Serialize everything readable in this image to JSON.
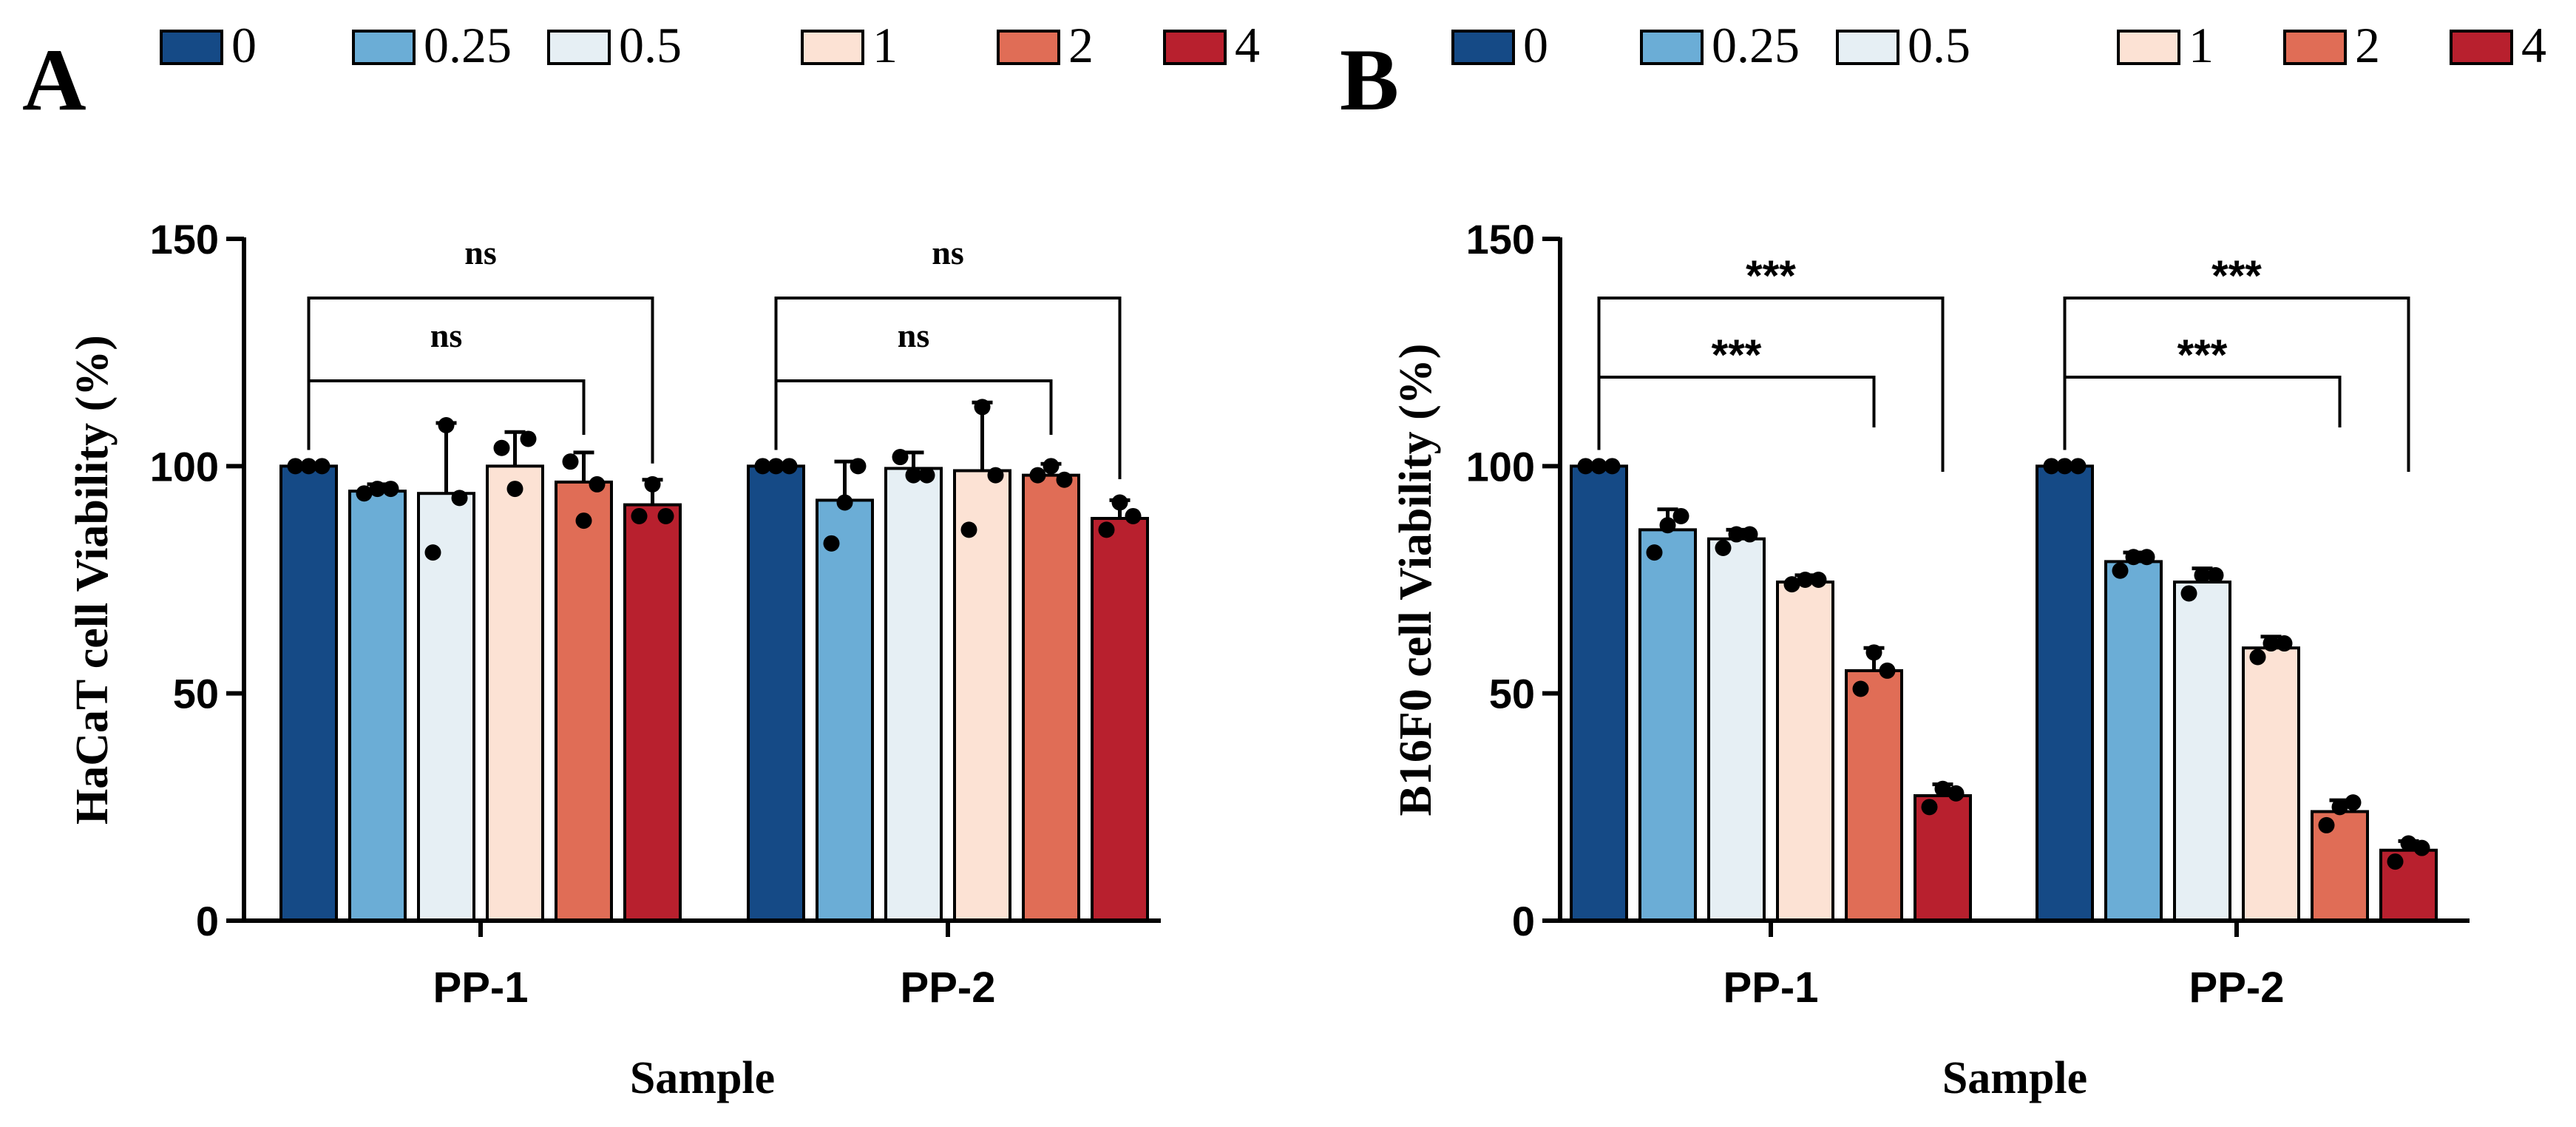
{
  "legend": {
    "entries": [
      {
        "label": "0",
        "color": "#154A86"
      },
      {
        "label": "0.25",
        "color": "#6BADD6"
      },
      {
        "label": "0.5",
        "color": "#E6EFF4"
      },
      {
        "label": "1",
        "color": "#FCE2D4"
      },
      {
        "label": "2",
        "color": "#E06D56"
      },
      {
        "label": "4",
        "color": "#B8202E"
      }
    ]
  },
  "chart_data": [
    {
      "panel": "A",
      "type": "bar",
      "ylabel": "HaCaT cell Viability (%)",
      "xlabel": "Sample",
      "ylim": [
        0,
        150
      ],
      "yticks": [
        0,
        50,
        100,
        150
      ],
      "groups": [
        "PP-1",
        "PP-2"
      ],
      "series": [
        {
          "name": "0",
          "values": [
            100,
            100
          ],
          "errors": [
            0,
            0
          ],
          "points": [
            [
              100,
              100,
              100
            ],
            [
              100,
              100,
              100
            ]
          ]
        },
        {
          "name": "0.25",
          "values": [
            94.5,
            92.5
          ],
          "errors": [
            1.5,
            8.5
          ],
          "points": [
            [
              94,
              95,
              95
            ],
            [
              83,
              92,
              100
            ]
          ]
        },
        {
          "name": "0.5",
          "values": [
            94,
            99.5
          ],
          "errors": [
            15.5,
            3.5
          ],
          "points": [
            [
              81,
              109,
              93
            ],
            [
              102,
              98,
              98
            ]
          ]
        },
        {
          "name": "1",
          "values": [
            100,
            99
          ],
          "errors": [
            7.5,
            15
          ],
          "points": [
            [
              104,
              95,
              106
            ],
            [
              86,
              113,
              98
            ]
          ]
        },
        {
          "name": "2",
          "values": [
            96.5,
            98
          ],
          "errors": [
            6.5,
            2.5
          ],
          "points": [
            [
              101,
              88,
              96
            ],
            [
              98,
              100,
              97
            ]
          ]
        },
        {
          "name": "4",
          "values": [
            91.5,
            88.5
          ],
          "errors": [
            5.5,
            4
          ],
          "points": [
            [
              89,
              96,
              89
            ],
            [
              86,
              92,
              89
            ]
          ]
        }
      ],
      "significance": [
        {
          "group": "PP-1",
          "label": "ns",
          "from": "0",
          "to": "4"
        },
        {
          "group": "PP-1",
          "label": "ns",
          "from": "0",
          "to": "2"
        },
        {
          "group": "PP-2",
          "label": "ns",
          "from": "0",
          "to": "4"
        },
        {
          "group": "PP-2",
          "label": "ns",
          "from": "0",
          "to": "2"
        }
      ]
    },
    {
      "panel": "B",
      "type": "bar",
      "ylabel": "B16F0 cell Viability (%)",
      "xlabel": "Sample",
      "ylim": [
        0,
        150
      ],
      "yticks": [
        0,
        50,
        100,
        150
      ],
      "groups": [
        "PP-1",
        "PP-2"
      ],
      "series": [
        {
          "name": "0",
          "values": [
            100,
            100
          ],
          "errors": [
            0,
            0
          ],
          "points": [
            [
              100,
              100,
              100
            ],
            [
              100,
              100,
              100
            ]
          ]
        },
        {
          "name": "0.25",
          "values": [
            86,
            79
          ],
          "errors": [
            4.5,
            2
          ],
          "points": [
            [
              81,
              87,
              89
            ],
            [
              77,
              80,
              80
            ]
          ]
        },
        {
          "name": "0.5",
          "values": [
            84,
            74.5
          ],
          "errors": [
            2,
            3
          ],
          "points": [
            [
              82,
              85,
              85
            ],
            [
              72,
              76,
              76
            ]
          ]
        },
        {
          "name": "1",
          "values": [
            74.5,
            60
          ],
          "errors": [
            1.5,
            2.5
          ],
          "points": [
            [
              74,
              75,
              75
            ],
            [
              58,
              61,
              61
            ]
          ]
        },
        {
          "name": "2",
          "values": [
            55,
            24
          ],
          "errors": [
            5,
            2.5
          ],
          "points": [
            [
              51,
              59,
              55
            ],
            [
              21,
              25,
              26
            ]
          ]
        },
        {
          "name": "4",
          "values": [
            27.5,
            15.5
          ],
          "errors": [
            2.5,
            2
          ],
          "points": [
            [
              25,
              29,
              28
            ],
            [
              13,
              17,
              16
            ]
          ]
        }
      ],
      "significance": [
        {
          "group": "PP-1",
          "label": "***",
          "from": "0",
          "to": "4"
        },
        {
          "group": "PP-1",
          "label": "***",
          "from": "0",
          "to": "2"
        },
        {
          "group": "PP-2",
          "label": "***",
          "from": "0",
          "to": "4"
        },
        {
          "group": "PP-2",
          "label": "***",
          "from": "0",
          "to": "2"
        }
      ]
    }
  ]
}
